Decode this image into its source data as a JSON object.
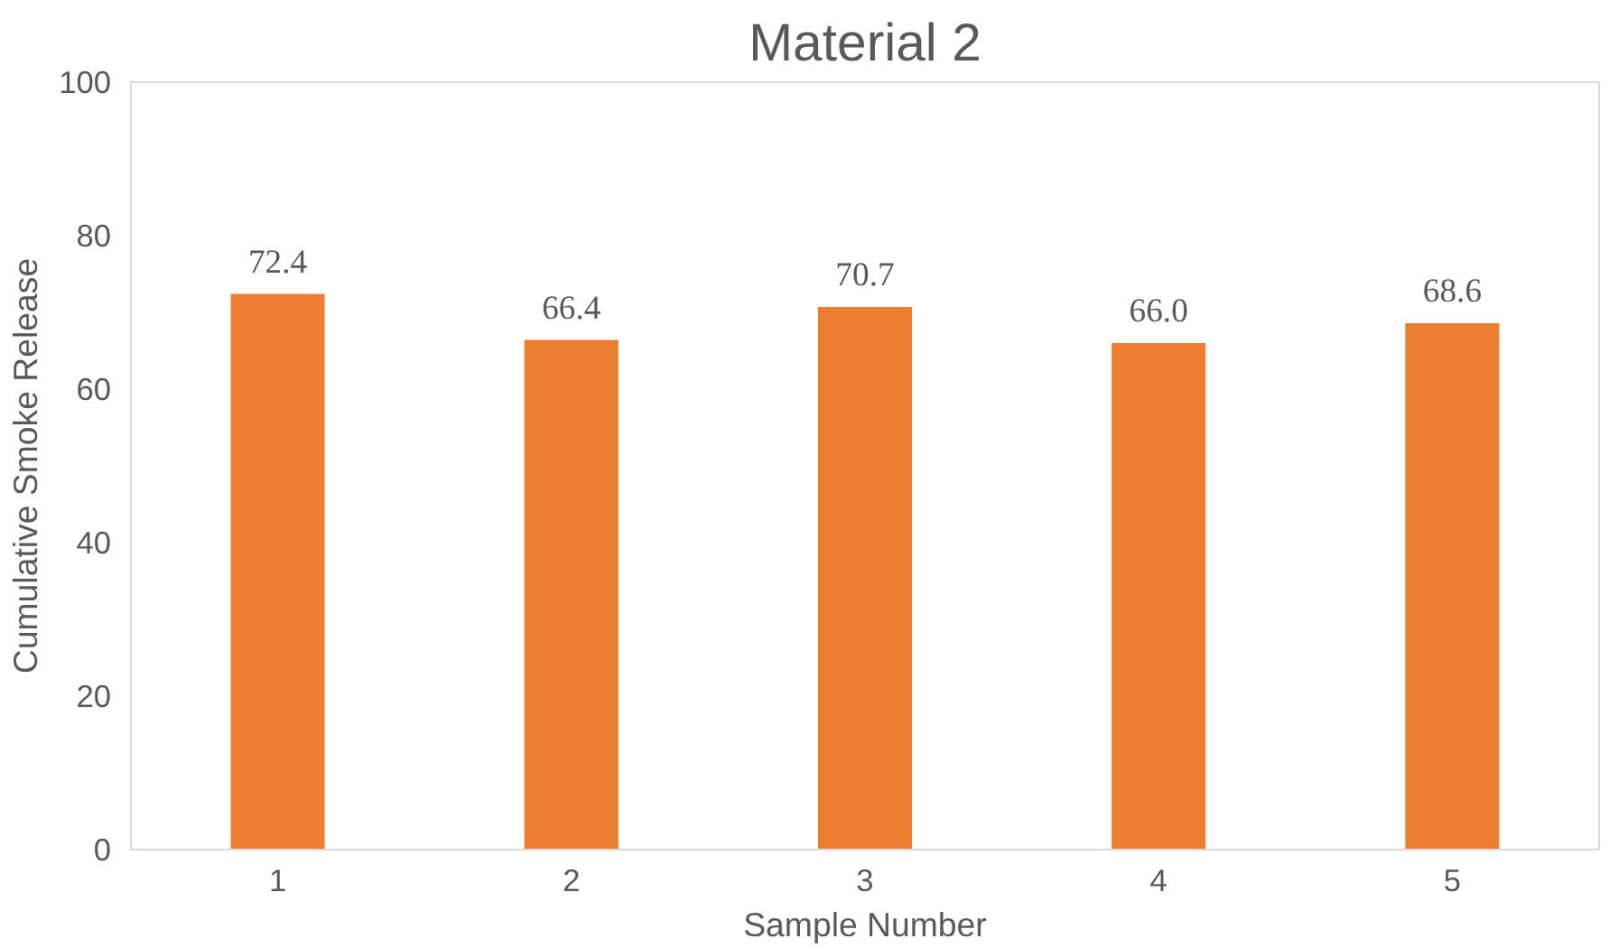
{
  "chart_data": {
    "type": "bar",
    "title": "Material 2",
    "xlabel": "Sample Number",
    "ylabel": "Cumulative Smoke Release",
    "categories": [
      "1",
      "2",
      "3",
      "4",
      "5"
    ],
    "values": [
      72.4,
      66.4,
      70.7,
      66.0,
      68.6
    ],
    "value_labels": [
      "72.4",
      "66.4",
      "70.7",
      "66.0",
      "68.6"
    ],
    "color": "#ed7d31",
    "ylim": [
      0,
      100
    ],
    "yticks": [
      0,
      20,
      40,
      60,
      80,
      100
    ],
    "grid": false
  }
}
